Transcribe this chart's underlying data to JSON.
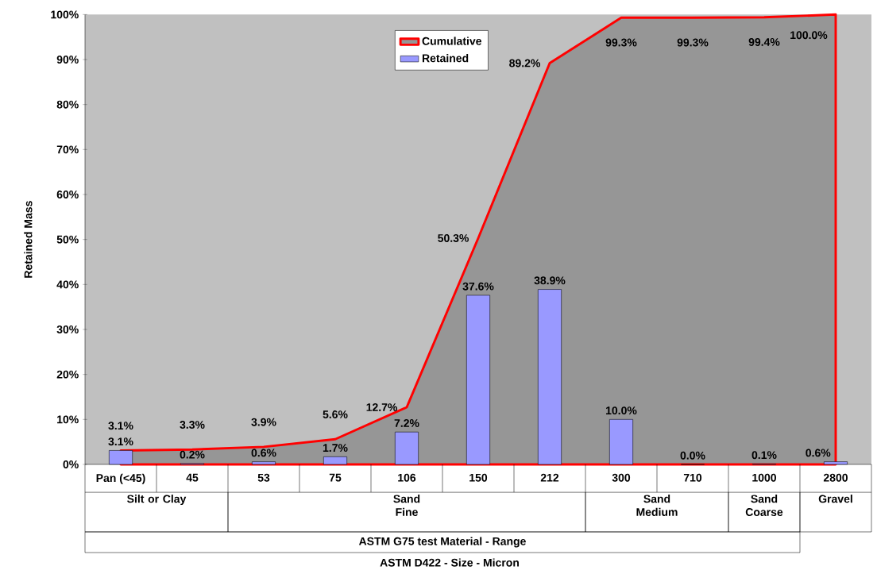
{
  "chart_data": {
    "type": "bar",
    "ylabel": "Retained Mass",
    "categories": [
      "Pan (<45)",
      "45",
      "53",
      "75",
      "106",
      "150",
      "212",
      "300",
      "710",
      "1000",
      "2800"
    ],
    "series": [
      {
        "name": "Cumulative",
        "type": "area",
        "color": "#ff0000",
        "values": [
          3.1,
          3.3,
          3.9,
          5.6,
          12.7,
          50.3,
          89.2,
          99.3,
          99.3,
          99.4,
          100.0
        ],
        "value_labels": [
          "3.1%",
          "3.3%",
          "3.9%",
          "5.6%",
          "12.7%",
          "50.3%",
          "89.2%",
          "99.3%",
          "99.3%",
          "99.4%",
          "100.0%"
        ]
      },
      {
        "name": "Retained",
        "color": "#9999ff",
        "values": [
          3.1,
          0.2,
          0.6,
          1.7,
          7.2,
          37.6,
          38.9,
          10.0,
          0.0,
          0.1,
          0.6
        ],
        "value_labels": [
          "3.1%",
          "0.2%",
          "0.6%",
          "1.7%",
          "7.2%",
          "37.6%",
          "38.9%",
          "10.0%",
          "0.0%",
          "0.1%",
          "0.6%"
        ]
      }
    ],
    "ylim": [
      0,
      100
    ],
    "yticks": [
      {
        "value": 0,
        "label": "0%"
      },
      {
        "value": 10,
        "label": "10%"
      },
      {
        "value": 20,
        "label": "20%"
      },
      {
        "value": 30,
        "label": "30%"
      },
      {
        "value": 40,
        "label": "40%"
      },
      {
        "value": 50,
        "label": "50%"
      },
      {
        "value": 60,
        "label": "60%"
      },
      {
        "value": 70,
        "label": "70%"
      },
      {
        "value": 80,
        "label": "80%"
      },
      {
        "value": 90,
        "label": "90%"
      },
      {
        "value": 100,
        "label": "100%"
      }
    ],
    "legend": "top",
    "annotations": [
      "Silt or Clay",
      "Sand Fine",
      "Sand Medium",
      "Sand Coarse",
      "Gravel",
      "ASTM G75 test Material - Range",
      "ASTM D422  - Size - Micron"
    ]
  }
}
